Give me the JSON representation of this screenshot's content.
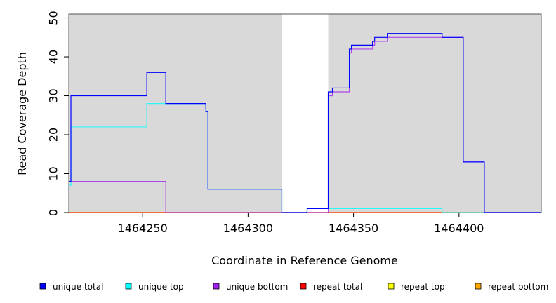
{
  "chart_data": {
    "type": "line",
    "xlabel": "Coordinate in Reference Genome",
    "ylabel": "Read Coverage Depth",
    "xlim": [
      1464215,
      1464439
    ],
    "ylim": [
      0,
      51
    ],
    "x_ticks": [
      1464250,
      1464300,
      1464350,
      1464400
    ],
    "y_ticks": [
      0,
      10,
      20,
      30,
      40,
      50
    ],
    "shaded_regions": [
      [
        1464215,
        1464316
      ],
      [
        1464338,
        1464439
      ]
    ],
    "legend_position": "bottom",
    "series": [
      {
        "name": "unique total",
        "color": "#0000ff",
        "step_x": [
          1464215,
          1464216,
          1464252,
          1464261,
          1464280,
          1464281,
          1464316,
          1464328,
          1464338,
          1464339,
          1464340,
          1464348,
          1464349,
          1464358,
          1464359,
          1464360,
          1464366,
          1464392,
          1464402,
          1464412,
          1464439
        ],
        "step_y": [
          8,
          30,
          36,
          28,
          26,
          6,
          0,
          1,
          31,
          31,
          32,
          42,
          43,
          43,
          44,
          45,
          46,
          45,
          13,
          0,
          0
        ]
      },
      {
        "name": "unique top",
        "color": "#00ffff",
        "step_x": [
          1464215,
          1464216,
          1464252,
          1464280,
          1464281,
          1464316,
          1464328,
          1464338,
          1464392,
          1464439
        ],
        "step_y": [
          7,
          22,
          28,
          26,
          6,
          0,
          1,
          1,
          0,
          0
        ]
      },
      {
        "name": "unique bottom",
        "color": "#a020f0",
        "step_x": [
          1464215,
          1464261,
          1464338,
          1464339,
          1464340,
          1464348,
          1464349,
          1464359,
          1464360,
          1464366,
          1464402,
          1464412,
          1464439
        ],
        "step_y": [
          8,
          0,
          30,
          30,
          31,
          41,
          42,
          43,
          44,
          45,
          13,
          0,
          0
        ]
      },
      {
        "name": "repeat total",
        "color": "#ff0000",
        "step_x": [
          1464215,
          1464439
        ],
        "step_y": [
          0,
          0
        ]
      },
      {
        "name": "repeat top",
        "color": "#ffff00",
        "step_x": [
          1464215,
          1464439
        ],
        "step_y": [
          0,
          0
        ]
      },
      {
        "name": "repeat bottom",
        "color": "#ffa500",
        "step_x": [
          1464215,
          1464439
        ],
        "step_y": [
          0,
          0
        ]
      }
    ]
  }
}
